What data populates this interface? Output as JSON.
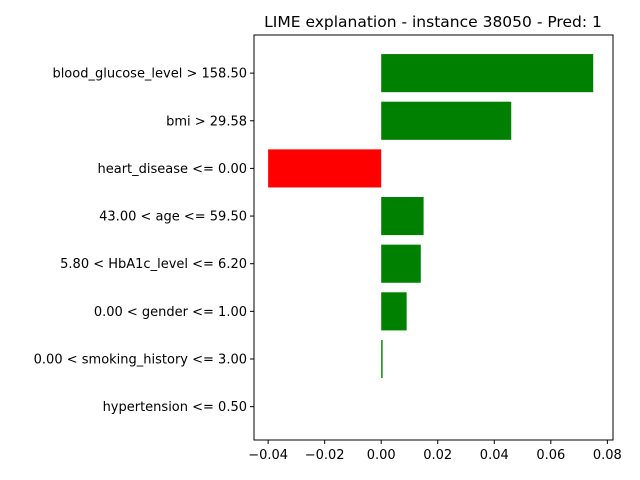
{
  "chart_data": {
    "type": "bar",
    "orientation": "horizontal",
    "title": "LIME explanation - instance 38050 - Pred: 1",
    "xlabel": "",
    "ylabel": "",
    "categories": [
      "blood_glucose_level > 158.50",
      "bmi > 29.58",
      "heart_disease <= 0.00",
      "43.00 < age <= 59.50",
      "5.80 < HbA1c_level <= 6.20",
      "0.00 < gender <= 1.00",
      "0.00 < smoking_history <= 3.00",
      "hypertension <= 0.50"
    ],
    "values": [
      0.075,
      0.046,
      -0.04,
      0.015,
      0.014,
      0.009,
      0.0005,
      0.0
    ],
    "xlim": [
      -0.045,
      0.082
    ],
    "xticks": [
      -0.04,
      -0.02,
      0.0,
      0.02,
      0.04,
      0.06,
      0.08
    ],
    "xtick_labels": [
      "−0.04",
      "−0.02",
      "0.00",
      "0.02",
      "0.04",
      "0.06",
      "0.08"
    ],
    "grid": false,
    "colors": {
      "positive": "#008000",
      "negative": "#ff0000",
      "axis": "#000000"
    }
  }
}
